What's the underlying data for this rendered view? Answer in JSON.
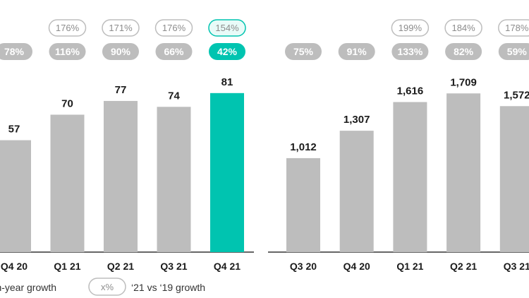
{
  "chart_data": [
    {
      "type": "bar",
      "categories": [
        "Q4 20",
        "Q1 21",
        "Q2 21",
        "Q3 21",
        "Q4 21"
      ],
      "values": [
        57,
        70,
        77,
        74,
        81
      ],
      "value_labels": [
        "57",
        "70",
        "77",
        "74",
        "81"
      ],
      "yoy_growth": [
        "78%",
        "116%",
        "90%",
        "66%",
        "42%"
      ],
      "growth_vs_19": [
        null,
        "176%",
        "171%",
        "176%",
        "154%"
      ],
      "highlight_category": "Q4 21",
      "highlight_color": "#00c4b0"
    },
    {
      "type": "bar",
      "categories": [
        "Q3 20",
        "Q4 20",
        "Q1 21",
        "Q2 21",
        "Q3 21"
      ],
      "values": [
        1012,
        1307,
        1616,
        1709,
        1572
      ],
      "value_labels": [
        "1,012",
        "1,307",
        "1,616",
        "1,709",
        "1,572"
      ],
      "yoy_growth": [
        "75%",
        "91%",
        "133%",
        "82%",
        "59%"
      ],
      "growth_vs_19": [
        null,
        null,
        "199%",
        "184%",
        "178%"
      ]
    }
  ],
  "legend": {
    "yoy_label": "-on-year growth",
    "vs19_sample": "x%",
    "vs19_label": "‘21 vs ‘19 growth"
  },
  "colors": {
    "bar": "#bdbdbd",
    "pill_fill": "#bdbdbd",
    "highlight": "#00c4b0",
    "highlight_outline_bg": "#e8fbf8",
    "outline": "#bdbdbd",
    "baseline": "#333333"
  }
}
